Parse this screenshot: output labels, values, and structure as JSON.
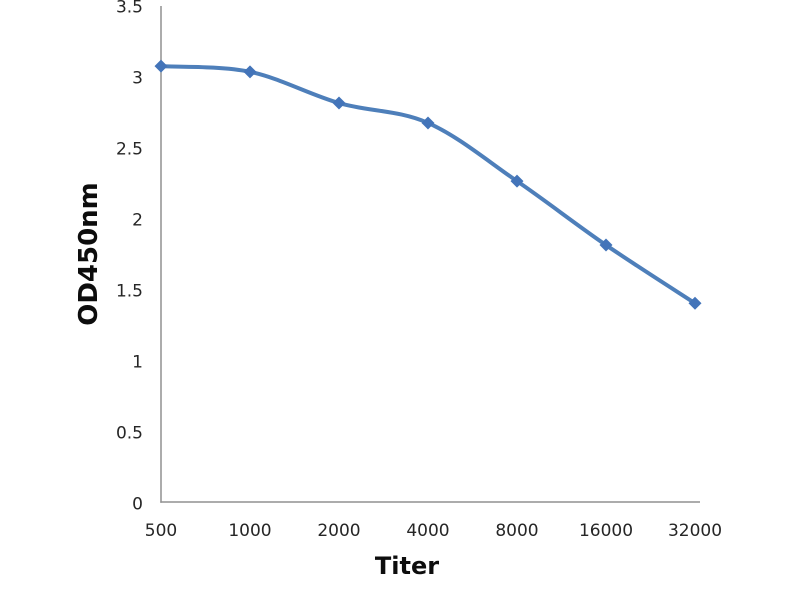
{
  "chart_data": {
    "type": "line",
    "title": "",
    "xlabel": "Titer",
    "ylabel": "OD450nm",
    "categories": [
      "500",
      "1000",
      "2000",
      "4000",
      "8000",
      "16000",
      "32000"
    ],
    "series": [
      {
        "name": "OD450nm",
        "values": [
          3.08,
          3.04,
          2.82,
          2.68,
          2.27,
          1.82,
          1.41
        ]
      }
    ],
    "ylim": [
      0,
      3.5
    ],
    "ytick_labels": [
      "0",
      "0.5",
      "1",
      "1.5",
      "2",
      "2.5",
      "3",
      "3.5"
    ],
    "grid": "off",
    "legend": "none",
    "line_style": "smoothed",
    "marker_style": "diamond",
    "colors": {
      "line": "#4e7fba",
      "marker": "#4374b9",
      "axis": "#919191",
      "tick_text": "#262626",
      "axis_title_text": "#0d0d0d"
    }
  }
}
